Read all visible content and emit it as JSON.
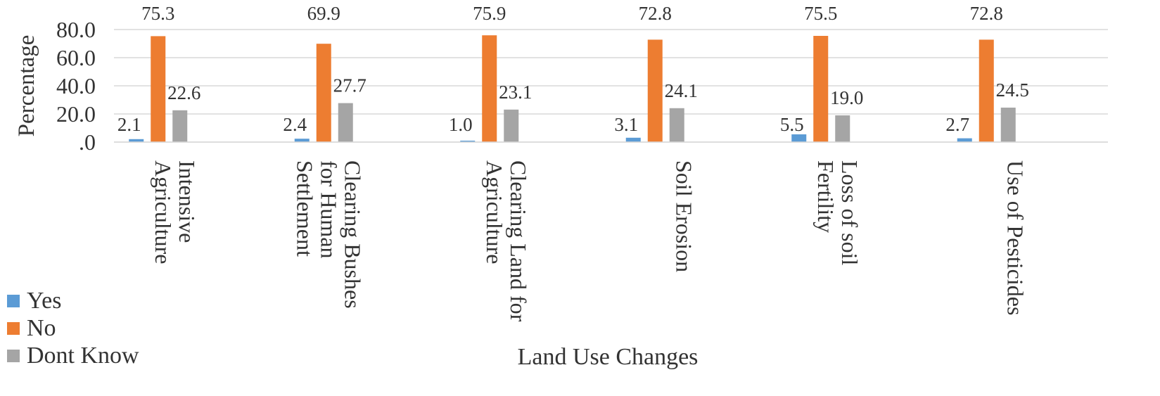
{
  "chart_data": {
    "type": "bar",
    "title": "",
    "xlabel": "Land Use Changes",
    "ylabel": "Percentage",
    "ylim": [
      0,
      80
    ],
    "yticks": [
      ".0",
      "20.0",
      "40.0",
      "60.0",
      "80.0"
    ],
    "grid": true,
    "legend_position": "bottom-left",
    "categories": [
      [
        "Intensive",
        "Agriculture"
      ],
      [
        "Clearing Bushes",
        "for Human",
        "Settlement"
      ],
      [
        "Clearing Land for",
        "Agriculture"
      ],
      [
        "Soil Erosion"
      ],
      [
        "Loss of soil",
        "Fertility"
      ],
      [
        "Use of Pesticides"
      ]
    ],
    "series": [
      {
        "name": "Yes",
        "color": "#5b9bd5",
        "values": [
          2.1,
          2.4,
          1.0,
          3.1,
          5.5,
          2.7
        ],
        "labels": [
          "2.1",
          "2.4",
          "1.0",
          "3.1",
          "5.5",
          "2.7"
        ]
      },
      {
        "name": "No",
        "color": "#ed7d31",
        "values": [
          75.3,
          69.9,
          75.9,
          72.8,
          75.5,
          72.8
        ],
        "labels": [
          "75.3",
          "69.9",
          "75.9",
          "72.8",
          "75.5",
          "72.8"
        ]
      },
      {
        "name": "Dont Know",
        "color": "#a5a5a5",
        "values": [
          22.6,
          27.7,
          23.1,
          24.1,
          19.0,
          24.5
        ],
        "labels": [
          "22.6",
          "27.7",
          "23.1",
          "24.1",
          "19.0",
          "24.5"
        ]
      }
    ]
  }
}
